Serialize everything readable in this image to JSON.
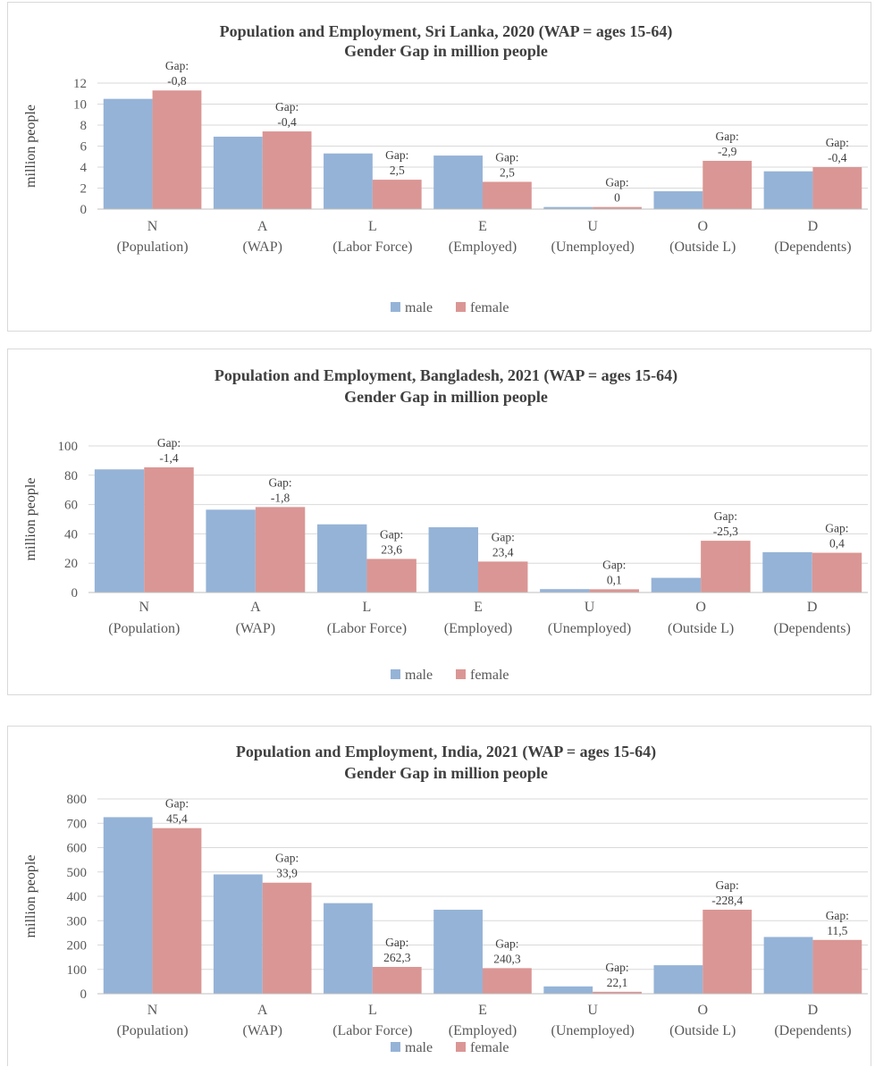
{
  "colors": {
    "male": "#95b3d7",
    "female": "#da9694",
    "grid": "#d9d9d9",
    "axis": "#bfbfbf"
  },
  "chart_data": [
    {
      "type": "bar",
      "title": "Population and Employment, Sri Lanka, 2020 (WAP = ages 15-64)",
      "subtitle": "Gender Gap in million people",
      "ylabel": "million people",
      "ylim": [
        0,
        12
      ],
      "yticks": [
        0,
        2,
        4,
        6,
        8,
        10,
        12
      ],
      "categories": [
        [
          "N",
          "(Population)"
        ],
        [
          "A",
          "(WAP)"
        ],
        [
          "L",
          "(Labor Force)"
        ],
        [
          "E",
          "(Employed)"
        ],
        [
          "U",
          "(Unemployed)"
        ],
        [
          "O",
          "(Outside L)"
        ],
        [
          "D",
          "(Dependents)"
        ]
      ],
      "series": [
        {
          "name": "male",
          "values": [
            10.5,
            6.9,
            5.3,
            5.1,
            0.2,
            1.7,
            3.6
          ]
        },
        {
          "name": "female",
          "values": [
            11.3,
            7.4,
            2.8,
            2.6,
            0.2,
            4.6,
            4.0
          ]
        }
      ],
      "gap_labels": [
        "-0,8",
        "-0,4",
        "2,5",
        "2,5",
        "0",
        "-2,9",
        "-0,4"
      ],
      "gap_prefix": "Gap:",
      "legend": [
        "male",
        "female"
      ],
      "legend_position": "bottom",
      "grid": true
    },
    {
      "type": "bar",
      "title": "Population and Employment, Bangladesh, 2021 (WAP = ages 15-64)",
      "subtitle": "Gender Gap in million people",
      "ylabel": "million people",
      "ylim": [
        0,
        100
      ],
      "yticks": [
        0,
        20,
        40,
        60,
        80,
        100
      ],
      "categories": [
        [
          "N",
          "(Population)"
        ],
        [
          "A",
          "(WAP)"
        ],
        [
          "L",
          "(Labor Force)"
        ],
        [
          "E",
          "(Employed)"
        ],
        [
          "U",
          "(Unemployed)"
        ],
        [
          "O",
          "(Outside L)"
        ],
        [
          "D",
          "(Dependents)"
        ]
      ],
      "series": [
        {
          "name": "male",
          "values": [
            84,
            56.5,
            46.5,
            44.5,
            2.3,
            10,
            27.5
          ]
        },
        {
          "name": "female",
          "values": [
            85.4,
            58.3,
            22.9,
            21.1,
            2.2,
            35.3,
            27.1
          ]
        }
      ],
      "gap_labels": [
        "-1,4",
        "-1,8",
        "23,6",
        "23,4",
        "0,1",
        "-25,3",
        "0,4"
      ],
      "gap_prefix": "Gap:",
      "legend": [
        "male",
        "female"
      ],
      "legend_position": "bottom",
      "grid": true
    },
    {
      "type": "bar",
      "title": "Population and Employment, India, 2021 (WAP = ages 15-64)",
      "subtitle": "Gender Gap in million people",
      "ylabel": "million people",
      "ylim": [
        0,
        800
      ],
      "yticks": [
        0,
        100,
        200,
        300,
        400,
        500,
        600,
        700,
        800
      ],
      "categories": [
        [
          "N",
          "(Population)"
        ],
        [
          "A",
          "(WAP)"
        ],
        [
          "L",
          "(Labor Force)"
        ],
        [
          "E",
          "(Employed)"
        ],
        [
          "U",
          "(Unemployed)"
        ],
        [
          "O",
          "(Outside L)"
        ],
        [
          "D",
          "(Dependents)"
        ]
      ],
      "series": [
        {
          "name": "male",
          "values": [
            725,
            490,
            372,
            345,
            30,
            117,
            233
          ]
        },
        {
          "name": "female",
          "values": [
            680,
            456,
            110,
            105,
            8,
            345,
            221
          ]
        }
      ],
      "gap_labels": [
        "45,4",
        "33,9",
        "262,3",
        "240,3",
        "22,1",
        "-228,4",
        "11,5"
      ],
      "gap_prefix": "Gap:",
      "legend": [
        "male",
        "female"
      ],
      "legend_position": "bottom",
      "grid": true
    }
  ]
}
